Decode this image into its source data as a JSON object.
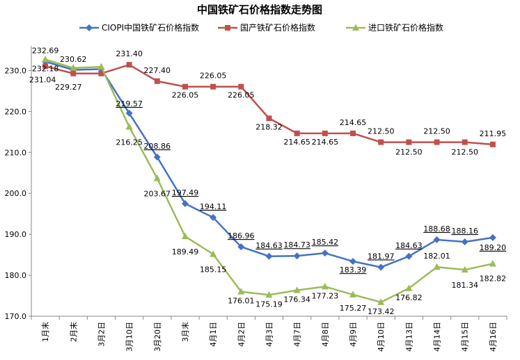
{
  "chart_data": {
    "type": "line",
    "title": "中国铁矿石价格指数走势图",
    "xlabel": "",
    "ylabel": "",
    "ylim": [
      170,
      235
    ],
    "yticks": [
      "170.0",
      "180.0",
      "190.0",
      "200.0",
      "210.0",
      "220.0",
      "230.0"
    ],
    "grid": false,
    "legend_position": "top",
    "categories": [
      "1月末",
      "2月末",
      "3月2日",
      "3月10日",
      "3月20日",
      "3月末",
      "4月1日",
      "4月2日",
      "4月3日",
      "4月7日",
      "4月8日",
      "4月9日",
      "4月10日",
      "4月13日",
      "4月14日",
      "4月15日",
      "4月16日"
    ],
    "series": [
      {
        "name": "CIOPI中国铁矿石价格指数",
        "color": "#4472C4",
        "marker": "diamond",
        "values": [
          232.18,
          230.15,
          230.35,
          219.57,
          208.86,
          197.49,
          194.11,
          186.96,
          184.63,
          184.73,
          185.42,
          183.39,
          181.97,
          184.63,
          188.68,
          188.16,
          189.2
        ],
        "labels": [
          "232.18",
          "",
          "",
          "219.57",
          "208.86",
          "197.49",
          "194.11",
          "186.96",
          "184.63",
          "184.73",
          "185.42",
          "183.39",
          "181.97",
          "184.63",
          "188.68",
          "188.16",
          "189.20"
        ]
      },
      {
        "name": "国产铁矿石价格指数",
        "color": "#C0504D",
        "marker": "square",
        "values": [
          231.04,
          229.27,
          229.27,
          231.4,
          227.4,
          226.05,
          226.05,
          226.05,
          218.32,
          214.65,
          214.65,
          214.65,
          212.5,
          212.5,
          212.5,
          212.5,
          211.95
        ],
        "labels": [
          "231.04",
          "229.27",
          "",
          "231.40",
          "227.40",
          "226.05",
          "226.05",
          "226.05",
          "218.32",
          "214.65",
          "214.65",
          "214.65",
          "212.50",
          "212.50",
          "212.50",
          "212.50",
          "211.95"
        ]
      },
      {
        "name": "进口铁矿石价格指数",
        "color": "#9BBB59",
        "marker": "triangle",
        "values": [
          232.69,
          230.62,
          230.9,
          216.25,
          203.67,
          189.49,
          185.15,
          176.01,
          175.19,
          176.34,
          177.23,
          175.27,
          173.42,
          176.82,
          182.01,
          181.34,
          182.82
        ],
        "labels": [
          "232.69",
          "230.62",
          "",
          "216.25",
          "203.67",
          "189.49",
          "185.15",
          "176.01",
          "175.19",
          "176.34",
          "177.23",
          "175.27",
          "173.42",
          "176.82",
          "182.01",
          "181.34",
          "182.82"
        ]
      }
    ]
  }
}
